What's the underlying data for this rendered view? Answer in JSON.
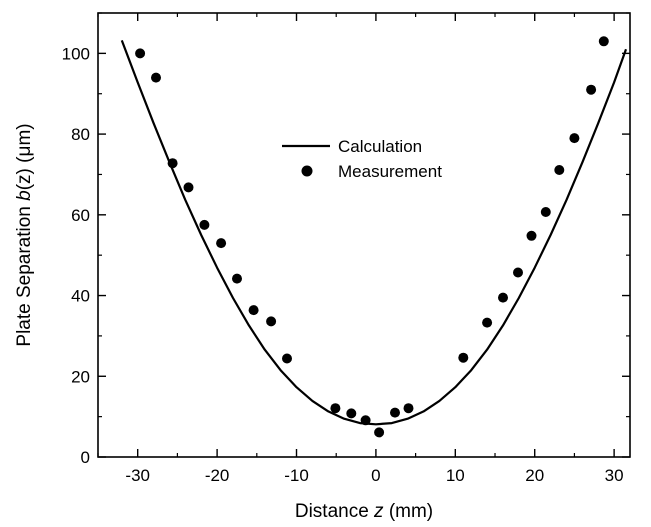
{
  "chart_data": {
    "type": "scatter",
    "xlabel": {
      "prefix": "Distance ",
      "var": "z",
      "suffix": " (mm)"
    },
    "ylabel": {
      "prefix": "Plate Separation ",
      "var": "b",
      "suffix": "(z) (μm)"
    },
    "xlim": [
      -35,
      32
    ],
    "ylim": [
      0,
      110
    ],
    "xticks": [
      -30,
      -20,
      -10,
      0,
      10,
      20,
      30
    ],
    "xtick_labels": [
      "-30",
      "-20",
      "-10",
      "0",
      "10",
      "20",
      "30"
    ],
    "yticks": [
      0,
      20,
      40,
      60,
      80,
      100
    ],
    "ytick_labels": [
      "0",
      "20",
      "40",
      "60",
      "80",
      "100"
    ],
    "grid": false,
    "legend_position": "center",
    "colors": {
      "line": "#000000",
      "marker": "#000000"
    },
    "series": [
      {
        "name": "Calculation",
        "kind": "line",
        "x": [
          -32,
          -30,
          -28,
          -26,
          -24,
          -22,
          -20,
          -18,
          -16,
          -14,
          -12,
          -10,
          -8,
          -6,
          -4,
          -2,
          0,
          2,
          4,
          6,
          8,
          10,
          12,
          14,
          16,
          18,
          20,
          22,
          24,
          26,
          28,
          30,
          31.5
        ],
        "y": [
          103.2,
          92.8,
          82.7,
          73.0,
          63.7,
          55.0,
          46.9,
          39.4,
          32.6,
          26.6,
          21.5,
          17.3,
          13.9,
          11.3,
          9.5,
          8.4,
          8.1,
          8.4,
          9.5,
          11.3,
          13.9,
          17.3,
          21.5,
          26.6,
          32.6,
          39.4,
          46.9,
          55.0,
          63.7,
          73.0,
          82.7,
          92.8,
          101.0
        ]
      },
      {
        "name": "Measurement",
        "kind": "scatter",
        "x": [
          -29.7,
          -27.7,
          -25.6,
          -23.6,
          -21.6,
          -19.5,
          -17.5,
          -15.4,
          -13.2,
          -11.2,
          -5.1,
          -3.1,
          -1.3,
          0.4,
          2.4,
          4.1,
          11.0,
          14.0,
          16.0,
          17.9,
          19.6,
          21.4,
          23.1,
          25.0,
          27.1,
          28.7
        ],
        "y": [
          100.0,
          94.0,
          72.8,
          66.8,
          57.5,
          53.0,
          44.2,
          36.4,
          33.6,
          24.4,
          12.1,
          10.8,
          9.1,
          6.1,
          11.0,
          12.1,
          24.6,
          33.3,
          39.5,
          45.7,
          54.8,
          60.7,
          71.1,
          79.0,
          91.0,
          103.0
        ]
      }
    ]
  }
}
